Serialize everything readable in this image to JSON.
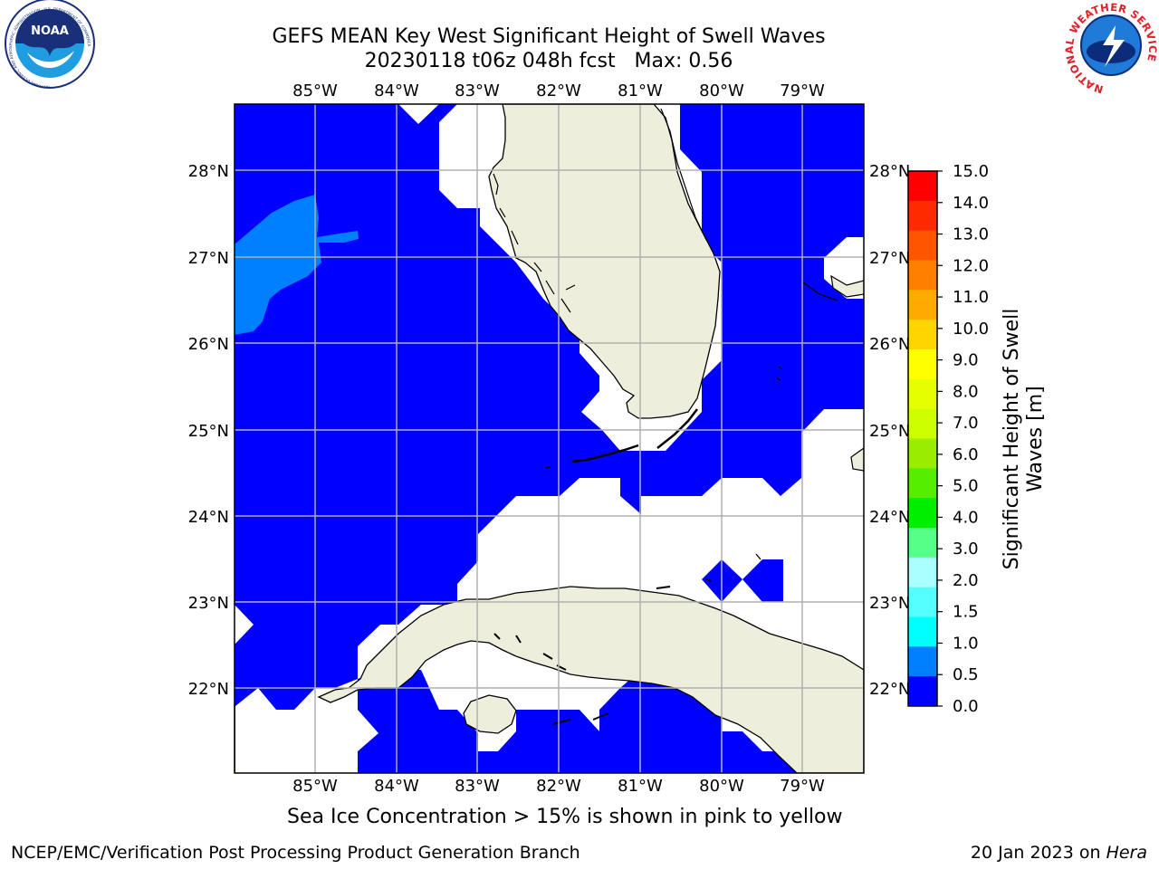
{
  "header": {
    "title_line1": "GEFS MEAN Key West Significant Height of Swell Waves",
    "title_line2": "20230118 t06z 048h fcst   Max: 0.56"
  },
  "map": {
    "lon_labels": [
      "85°W",
      "84°W",
      "83°W",
      "82°W",
      "81°W",
      "80°W",
      "79°W"
    ],
    "lat_labels": [
      "28°N",
      "27°N",
      "26°N",
      "25°N",
      "24°N",
      "23°N",
      "22°N"
    ],
    "colors": {
      "ocean_low": "#0000ff",
      "ocean_mid": "#0080ff",
      "land": "#eeeedd",
      "gridline": "#b0b0b0"
    }
  },
  "colorbar": {
    "label_line1": "Significant Height of Swell",
    "label_line2": "Waves [m]",
    "ticks": [
      "15.0",
      "14.0",
      "13.0",
      "12.0",
      "11.0",
      "10.0",
      "9.0",
      "8.0",
      "7.0",
      "6.0",
      "5.0",
      "4.0",
      "3.0",
      "2.0",
      "1.5",
      "1.0",
      "0.5",
      "0.0"
    ],
    "colors": [
      "#ff0000",
      "#ff2a00",
      "#ff5500",
      "#ff8000",
      "#ffaa00",
      "#ffd500",
      "#ffff00",
      "#e6ff00",
      "#ccff00",
      "#99ee00",
      "#55ee00",
      "#00ee00",
      "#55ff88",
      "#aaffff",
      "#55ffff",
      "#00ffff",
      "#0080ff",
      "#0000ff"
    ]
  },
  "note": "Sea Ice Concentration > 15% is shown in pink to yellow",
  "footer": {
    "left": "NCEP/EMC/Verification Post Processing Product Generation Branch",
    "right_date": "20 Jan 2023 on ",
    "right_host": "Hera"
  },
  "logos": {
    "noaa": {
      "text": "NOAA",
      "ring_text": "NATIONAL OCEANIC AND ATMOSPHERIC ADMINISTRATION · U.S. DEPARTMENT OF COMMERCE"
    },
    "nws": {
      "ring_text": "NATIONAL WEATHER SERVICE"
    }
  }
}
